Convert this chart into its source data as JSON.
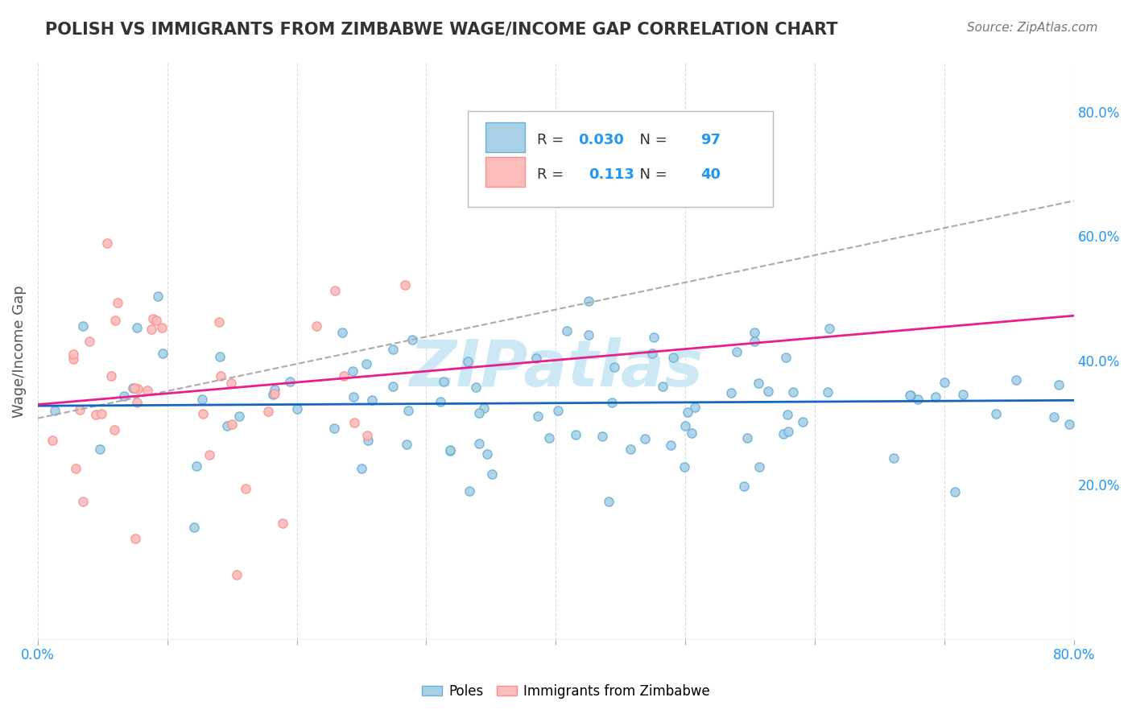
{
  "title": "POLISH VS IMMIGRANTS FROM ZIMBABWE WAGE/INCOME GAP CORRELATION CHART",
  "source": "Source: ZipAtlas.com",
  "ylabel": "Wage/Income Gap",
  "xlim": [
    0.0,
    0.8
  ],
  "ylim": [
    -0.05,
    0.88
  ],
  "y_tick_vals_right": [
    0.2,
    0.4,
    0.6,
    0.8
  ],
  "poles_color": "#6baed6",
  "poles_color_fill": "#a8d0e6",
  "zimbabwe_color": "#fc8d8d",
  "zimbabwe_color_fill": "#fdbdbd",
  "trend_poles_color": "#1565C0",
  "trend_zimbabwe_color": "#e91e8c",
  "trend_dashed_color": "#aaaaaa",
  "R_poles": 0.03,
  "N_poles": 97,
  "R_zimbabwe": 0.113,
  "N_zimbabwe": 40,
  "background_color": "#ffffff",
  "grid_color": "#cccccc",
  "watermark_text": "ZIPatlas",
  "watermark_color": "#cce8f4"
}
